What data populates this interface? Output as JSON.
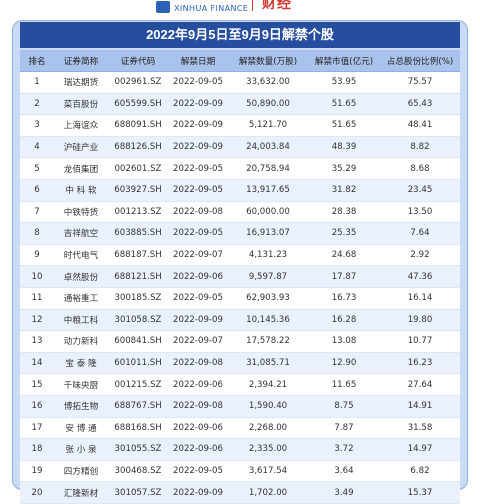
{
  "brand": {
    "left_text": "XINHUA FINANCE",
    "right_text": "财经"
  },
  "table": {
    "title": "2022年9月5日至9月9日解禁个股",
    "headers": [
      "排名",
      "证券简称",
      "证券代码",
      "解禁日期",
      "解禁数量(万股)",
      "解禁市值(亿元)",
      "占总股份比例(%)"
    ],
    "rows": [
      [
        "1",
        "瑞达期货",
        "002961.SZ",
        "2022-09-05",
        "33,632.00",
        "53.95",
        "75.57"
      ],
      [
        "2",
        "菜百股份",
        "605599.SH",
        "2022-09-09",
        "50,890.00",
        "51.65",
        "65.43"
      ],
      [
        "3",
        "上海谊众",
        "688091.SH",
        "2022-09-09",
        "5,121.70",
        "51.65",
        "48.41"
      ],
      [
        "4",
        "沪硅产业",
        "688126.SH",
        "2022-09-09",
        "24,003.84",
        "48.39",
        "8.82"
      ],
      [
        "5",
        "龙佰集团",
        "002601.SZ",
        "2022-09-05",
        "20,758.94",
        "35.29",
        "8.68"
      ],
      [
        "6",
        "中 科 软",
        "603927.SH",
        "2022-09-05",
        "13,917.65",
        "31.82",
        "23.45"
      ],
      [
        "7",
        "中铁特货",
        "001213.SZ",
        "2022-09-08",
        "60,000.00",
        "28.38",
        "13.50"
      ],
      [
        "8",
        "吉祥航空",
        "603885.SH",
        "2022-09-05",
        "16,913.07",
        "25.35",
        "7.64"
      ],
      [
        "9",
        "时代电气",
        "688187.SH",
        "2022-09-07",
        "4,131.23",
        "24.68",
        "2.92"
      ],
      [
        "10",
        "卓然股份",
        "688121.SH",
        "2022-09-06",
        "9,597.87",
        "17.87",
        "47.36"
      ],
      [
        "11",
        "通裕重工",
        "300185.SZ",
        "2022-09-05",
        "62,903.93",
        "16.73",
        "16.14"
      ],
      [
        "12",
        "中粮工科",
        "301058.SZ",
        "2022-09-09",
        "10,145.36",
        "16.28",
        "19.80"
      ],
      [
        "13",
        "动力新科",
        "600841.SH",
        "2022-09-07",
        "17,578.22",
        "13.08",
        "10.77"
      ],
      [
        "14",
        "宝 泰 隆",
        "601011.SH",
        "2022-09-08",
        "31,085.71",
        "12.90",
        "16.23"
      ],
      [
        "15",
        "千味央厨",
        "001215.SZ",
        "2022-09-06",
        "2,394.21",
        "11.65",
        "27.64"
      ],
      [
        "16",
        "博拓生物",
        "688767.SH",
        "2022-09-08",
        "1,590.40",
        "8.75",
        "14.91"
      ],
      [
        "17",
        "安 博 通",
        "688168.SH",
        "2022-09-06",
        "2,268.00",
        "7.87",
        "31.58"
      ],
      [
        "18",
        "张 小 泉",
        "301055.SZ",
        "2022-09-06",
        "2,335.00",
        "3.72",
        "14.97"
      ],
      [
        "19",
        "四方精创",
        "300468.SZ",
        "2022-09-05",
        "3,617.54",
        "3.64",
        "6.82"
      ],
      [
        "20",
        "汇隆新材",
        "301057.SZ",
        "2022-09-09",
        "1,702.00",
        "3.49",
        "15.37"
      ]
    ]
  }
}
